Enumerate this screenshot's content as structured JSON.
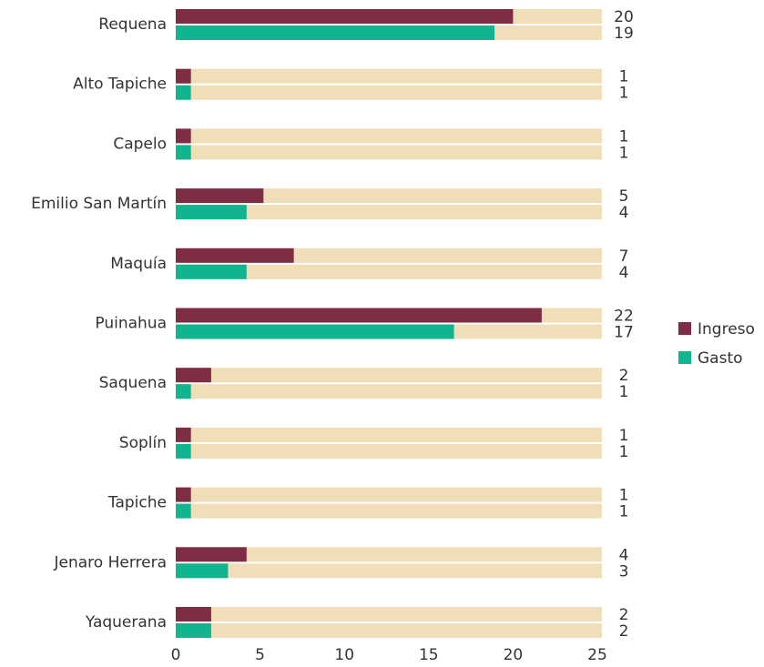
{
  "chart_data": {
    "type": "bar",
    "categories": [
      "Requena",
      "Alto Tapiche",
      "Capelo",
      "Emilio San Martín",
      "Maquía",
      "Puinahua",
      "Saquena",
      "Soplín",
      "Tapiche",
      "Jenaro Herrera",
      "Yaquerana"
    ],
    "series": [
      {
        "name": "Ingreso",
        "color": "#7f2d45",
        "values": [
          20,
          0.9,
          0.9,
          5.2,
          7,
          21.7,
          2.1,
          0.9,
          0.9,
          4.2,
          2.1
        ],
        "value_labels": [
          "20",
          "1",
          "1",
          "5",
          "7",
          "22",
          "2",
          "1",
          "1",
          "4",
          "2"
        ]
      },
      {
        "name": "Gasto",
        "color": "#10b48f",
        "values": [
          18.9,
          0.9,
          0.9,
          4.2,
          4.2,
          16.5,
          0.9,
          0.9,
          0.9,
          3.1,
          2.1
        ],
        "value_labels": [
          "19",
          "1",
          "1",
          "4",
          "4",
          "17",
          "1",
          "1",
          "1",
          "3",
          "2"
        ]
      }
    ],
    "track_color": "#f0deb8",
    "xlim": [
      0,
      25
    ],
    "xticks": [
      0,
      5,
      10,
      15,
      20,
      25
    ],
    "legend": "right"
  }
}
